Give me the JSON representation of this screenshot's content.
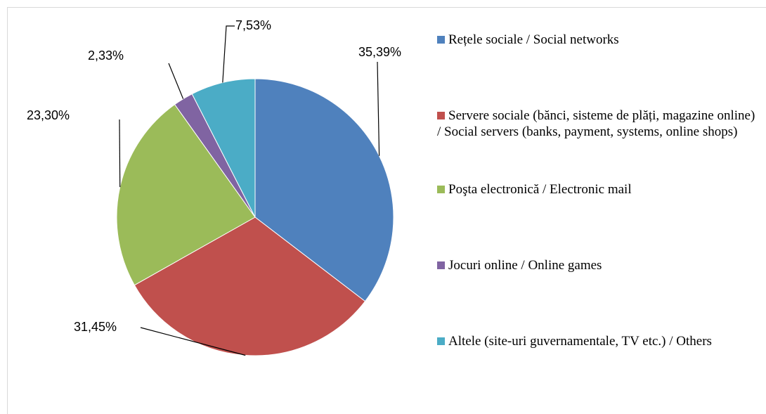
{
  "chart_data": {
    "type": "pie",
    "categories": [
      "Rețele sociale / Social networks",
      "Servere sociale (bănci, sisteme de plăți, magazine online) / Social servers (banks, payment, systems, online shops)",
      "Poşta electronică / Electronic mail",
      "Jocuri online / Online games",
      "Altele (site-uri guvernamentale, TV etc.) / Others"
    ],
    "values": [
      35.39,
      31.45,
      23.3,
      2.33,
      7.53
    ],
    "value_labels": [
      "35,39%",
      "31,45%",
      "23,30%",
      "2,33%",
      "7,53%"
    ],
    "colors": [
      "#4f81bd",
      "#c0504d",
      "#9bbb59",
      "#8064a2",
      "#4bacc6"
    ],
    "legend": "right"
  }
}
